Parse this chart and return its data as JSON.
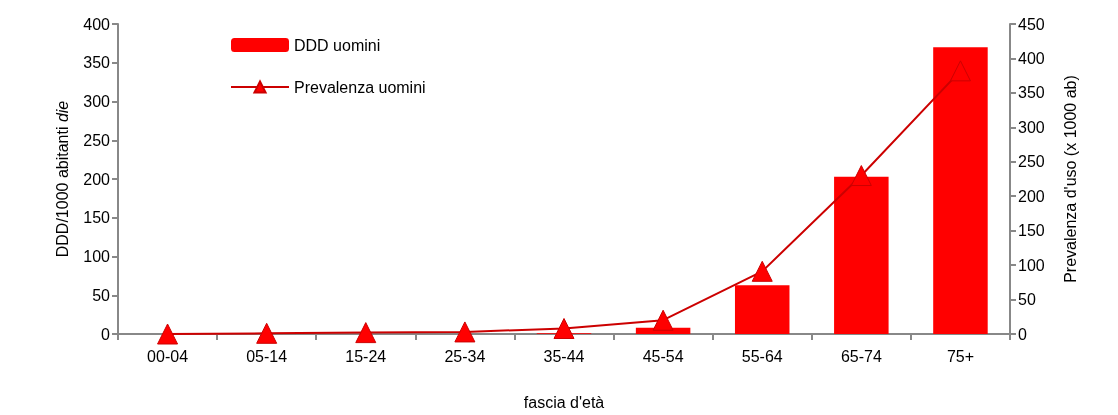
{
  "chart_data": {
    "type": "bar",
    "xlabel": "fascia d'età",
    "ylabel": "DDD/1000 abitanti die",
    "y2label": "Prevalenza d'uso (x 1000 ab)",
    "categories": [
      "00-04",
      "05-14",
      "15-24",
      "25-34",
      "35-44",
      "45-54",
      "55-64",
      "65-74",
      "75+"
    ],
    "series": [
      {
        "name": "DDD uomini",
        "color": "#ff0000",
        "values": [
          0,
          0,
          0,
          0,
          1,
          8,
          63,
          203,
          370
        ]
      },
      {
        "name": "Prevalenza uomini",
        "type": "line",
        "axis": "y2",
        "color": "#cc0000",
        "marker": "triangle",
        "values": [
          0,
          1,
          2,
          3,
          8,
          20,
          91,
          230,
          382
        ]
      }
    ],
    "ylim": [
      0,
      400
    ],
    "yticks": [
      0,
      50,
      100,
      150,
      200,
      250,
      300,
      350,
      400
    ],
    "y2lim": [
      0,
      450
    ],
    "y2ticks": [
      0,
      50,
      100,
      150,
      200,
      250,
      300,
      350,
      400,
      450
    ],
    "grid": false,
    "legend": "top left"
  }
}
